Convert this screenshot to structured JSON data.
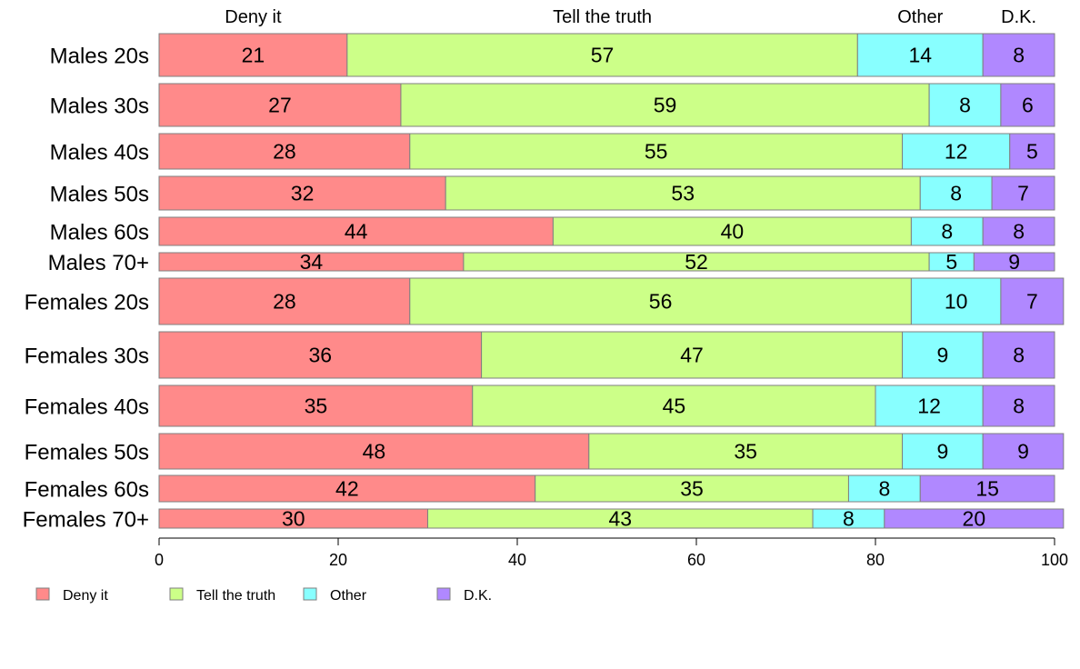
{
  "chart_data": {
    "type": "bar",
    "orientation": "horizontal",
    "stacked": true,
    "categories": [
      "Males 20s",
      "Males 30s",
      "Males 40s",
      "Males 50s",
      "Males 60s",
      "Males 70+",
      "Females 20s",
      "Females 30s",
      "Females 40s",
      "Females 50s",
      "Females 60s",
      "Females 70+"
    ],
    "series": [
      {
        "name": "Deny it",
        "color": "#FF8A8A",
        "values": [
          21,
          27,
          28,
          32,
          44,
          34,
          28,
          36,
          35,
          48,
          42,
          30
        ]
      },
      {
        "name": "Tell the truth",
        "color": "#CCFF88",
        "values": [
          57,
          59,
          55,
          53,
          40,
          52,
          56,
          47,
          45,
          35,
          35,
          43
        ]
      },
      {
        "name": "Other",
        "color": "#88FFFF",
        "values": [
          14,
          8,
          12,
          8,
          8,
          5,
          10,
          9,
          12,
          9,
          8,
          8
        ]
      },
      {
        "name": "D.K.",
        "color": "#B088FF",
        "values": [
          8,
          6,
          5,
          7,
          8,
          9,
          7,
          8,
          8,
          9,
          15,
          20
        ]
      }
    ],
    "column_headers": [
      "Deny it",
      "Tell the truth",
      "Other",
      "D.K."
    ],
    "xlim": [
      0,
      100
    ],
    "xticks": [
      "0",
      "20",
      "40",
      "60",
      "80",
      "100"
    ],
    "legend_position": "bottom-left",
    "grid": false
  }
}
